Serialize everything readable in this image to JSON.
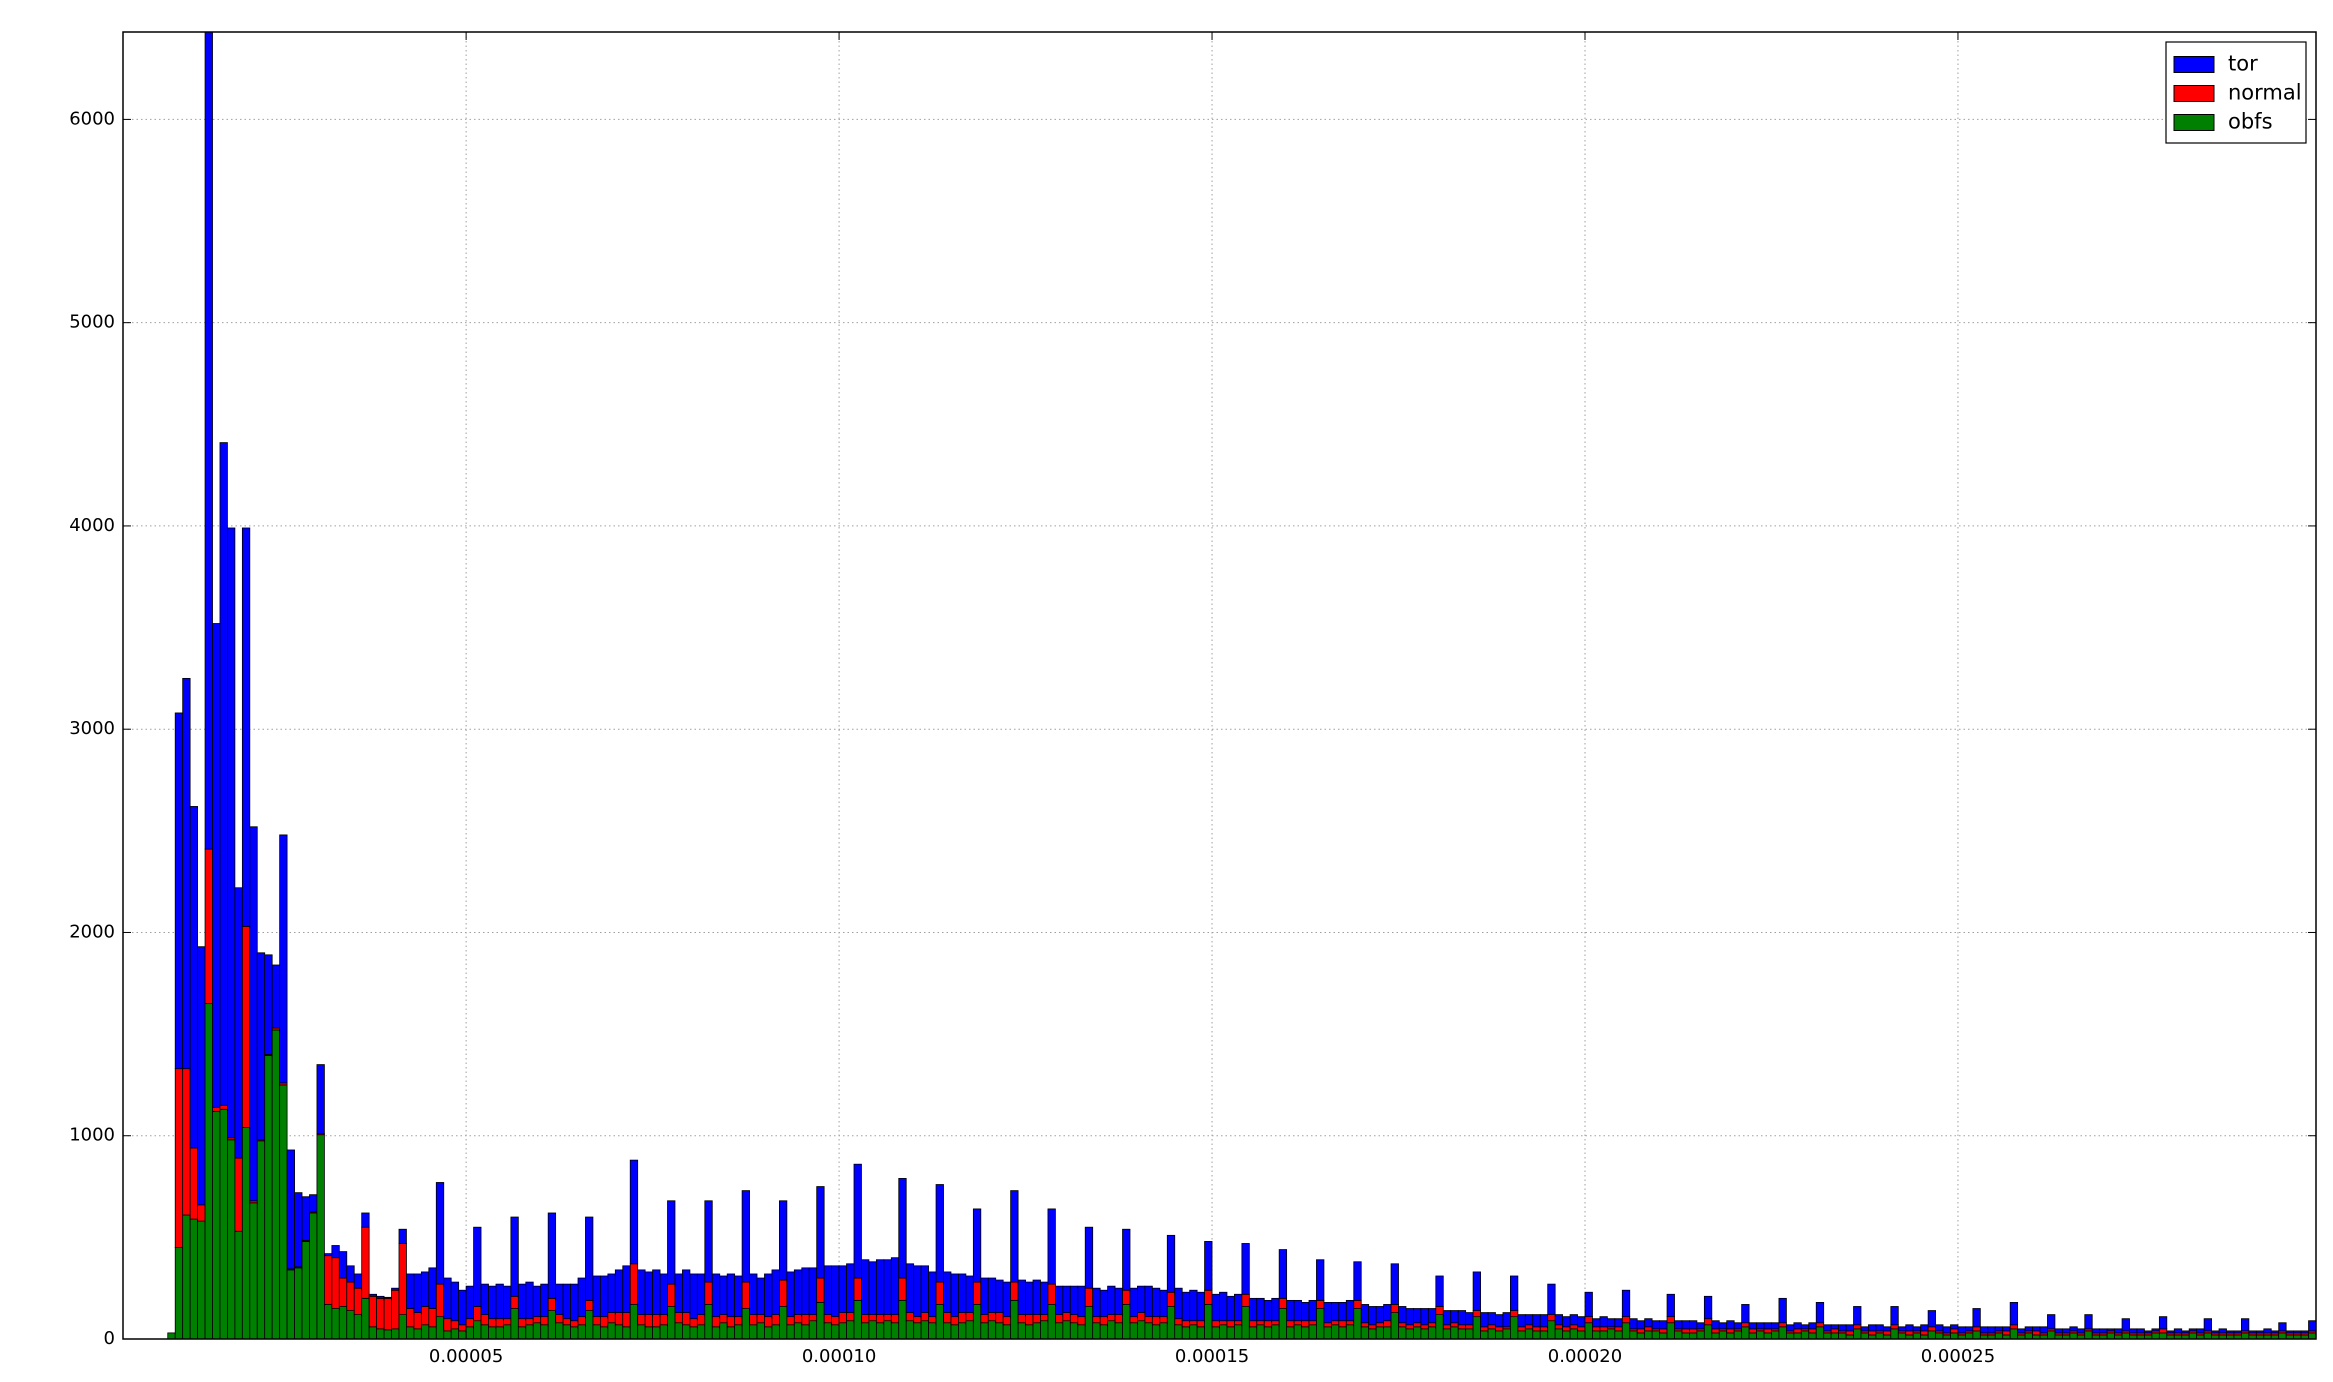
{
  "chart_data": {
    "type": "histogram",
    "stacked": true,
    "grid": true,
    "legend": "upper right",
    "xlim": [
      4e-06,
      0.000298
    ],
    "ylim": [
      0,
      6430
    ],
    "xticks": [
      {
        "value": 5e-05,
        "label": "0.00005"
      },
      {
        "value": 0.0001,
        "label": "0.00010"
      },
      {
        "value": 0.00015,
        "label": "0.00015"
      },
      {
        "value": 0.0002,
        "label": "0.00020"
      },
      {
        "value": 0.00025,
        "label": "0.00025"
      }
    ],
    "yticks": [
      0,
      1000,
      2000,
      3000,
      4000,
      5000,
      6000
    ],
    "bins": [
      4e-06,
      5e-06,
      6e-06,
      7e-06,
      8e-06,
      9e-06,
      1e-05,
      1.1e-05,
      1.2e-05,
      1.3e-05,
      1.4e-05,
      1.5e-05,
      1.6e-05,
      1.7e-05,
      1.8e-05,
      1.9e-05,
      2e-05,
      2.1e-05,
      2.2e-05,
      2.3e-05,
      2.4e-05,
      2.5e-05,
      2.6e-05,
      2.7e-05,
      2.8e-05,
      2.9e-05,
      3e-05,
      3.1e-05,
      3.2e-05,
      3.3e-05,
      3.4e-05,
      3.5e-05,
      3.6e-05,
      3.7e-05,
      3.8e-05,
      3.9e-05,
      4e-05,
      4.1e-05,
      4.2e-05,
      4.3e-05,
      4.4e-05,
      4.5e-05,
      4.6e-05,
      4.7e-05,
      4.8e-05,
      4.9e-05,
      5e-05,
      5.1e-05,
      5.2e-05,
      5.3e-05,
      5.4e-05,
      5.5e-05,
      5.6e-05,
      5.7e-05,
      5.8e-05,
      5.9e-05,
      6e-05,
      6.1e-05,
      6.2e-05,
      6.3e-05,
      6.4e-05,
      6.5e-05,
      6.6e-05,
      6.7e-05,
      6.8e-05,
      6.9e-05,
      7e-05,
      7.1e-05,
      7.2e-05,
      7.3e-05,
      7.4e-05,
      7.5e-05,
      7.6e-05,
      7.7e-05,
      7.8e-05,
      7.9e-05,
      8e-05,
      8.1e-05,
      8.2e-05,
      8.3e-05,
      8.4e-05,
      8.5e-05,
      8.6e-05,
      8.7e-05,
      8.8e-05,
      8.9e-05,
      9e-05,
      9.1e-05,
      9.2e-05,
      9.3e-05,
      9.4e-05,
      9.5e-05,
      9.6e-05,
      9.7e-05,
      9.8e-05,
      9.9e-05,
      0.0001,
      0.000101,
      0.000102,
      0.000103,
      0.000104,
      0.000105,
      0.000106,
      0.000107,
      0.000108,
      0.000109,
      0.00011,
      0.000111,
      0.000112,
      0.000113,
      0.000114,
      0.000115,
      0.000116,
      0.000117,
      0.000118,
      0.000119,
      0.00012,
      0.000121,
      0.000122,
      0.000123,
      0.000124,
      0.000125,
      0.000126,
      0.000127,
      0.000128,
      0.000129,
      0.00013,
      0.000131,
      0.000132,
      0.000133,
      0.000134,
      0.000135,
      0.000136,
      0.000137,
      0.000138,
      0.000139,
      0.00014,
      0.000141,
      0.000142,
      0.000143,
      0.000144,
      0.000145,
      0.000146,
      0.000147,
      0.000148,
      0.000149,
      0.00015,
      0.000151,
      0.000152,
      0.000153,
      0.000154,
      0.000155,
      0.000156,
      0.000157,
      0.000158,
      0.000159,
      0.00016,
      0.000161,
      0.000162,
      0.000163,
      0.000164,
      0.000165,
      0.000166,
      0.000167,
      0.000168,
      0.000169,
      0.00017,
      0.000171,
      0.000172,
      0.000173,
      0.000174,
      0.000175,
      0.000176,
      0.000177,
      0.000178,
      0.000179,
      0.00018,
      0.000181,
      0.000182,
      0.000183,
      0.000184,
      0.000185,
      0.000186,
      0.000187,
      0.000188,
      0.000189,
      0.00019,
      0.000191,
      0.000192,
      0.000193,
      0.000194,
      0.000195,
      0.000196,
      0.000197,
      0.000198,
      0.000199,
      0.0002,
      0.000201,
      0.000202,
      0.000203,
      0.000204,
      0.000205,
      0.000206,
      0.000207,
      0.000208,
      0.000209,
      0.00021,
      0.000211,
      0.000212,
      0.000213,
      0.000214,
      0.000215,
      0.000216,
      0.000217,
      0.000218,
      0.000219,
      0.00022,
      0.000221,
      0.000222,
      0.000223,
      0.000224,
      0.000225,
      0.000226,
      0.000227,
      0.000228,
      0.000229,
      0.00023,
      0.000231,
      0.000232,
      0.000233,
      0.000234,
      0.000235,
      0.000236,
      0.000237,
      0.000238,
      0.000239,
      0.00024,
      0.000241,
      0.000242,
      0.000243,
      0.000244,
      0.000245,
      0.000246,
      0.000247,
      0.000248,
      0.000249,
      0.00025,
      0.000251,
      0.000252,
      0.000253,
      0.000254,
      0.000255,
      0.000256,
      0.000257,
      0.000258,
      0.000259,
      0.00026,
      0.000261,
      0.000262,
      0.000263,
      0.000264,
      0.000265,
      0.000266,
      0.000267,
      0.000268,
      0.000269,
      0.00027,
      0.000271,
      0.000272,
      0.000273,
      0.000274,
      0.000275,
      0.000276,
      0.000277,
      0.000278,
      0.000279,
      0.00028,
      0.000281,
      0.000282,
      0.000283,
      0.000284,
      0.000285,
      0.000286,
      0.000287,
      0.000288,
      0.000289,
      0.00029,
      0.000291,
      0.000292,
      0.000293,
      0.000294,
      0.000295,
      0.000296,
      0.000297,
      0.000298
    ],
    "series": [
      {
        "name": "tor",
        "color": "#0000ff",
        "values": [
          0,
          0,
          0,
          0,
          0,
          0,
          0,
          1750,
          1920,
          1680,
          1270,
          4020,
          2380,
          3260,
          3000,
          1330,
          1960,
          1840,
          920,
          490,
          310,
          1220,
          585,
          365,
          215,
          85,
          340,
          10,
          60,
          130,
          80,
          70,
          70,
          10,
          10,
          5,
          10,
          70,
          170,
          190,
          170,
          200,
          500,
          200,
          190,
          170,
          160,
          390,
          150,
          160,
          170,
          160,
          390,
          170,
          180,
          150,
          160,
          420,
          150,
          170,
          180,
          190,
          410,
          200,
          200,
          190,
          210,
          230,
          510,
          220,
          210,
          220,
          200,
          410,
          190,
          210,
          220,
          200,
          400,
          210,
          190,
          210,
          200,
          450,
          200,
          180,
          210,
          220,
          390,
          220,
          220,
          230,
          230,
          450,
          240,
          250,
          230,
          240,
          560,
          270,
          260,
          270,
          270,
          280,
          490,
          240,
          250,
          230,
          220,
          480,
          200,
          210,
          190,
          180,
          360,
          180,
          170,
          160,
          170,
          450,
          170,
          160,
          170,
          160,
          370,
          140,
          130,
          140,
          150,
          300,
          140,
          130,
          140,
          130,
          300,
          140,
          130,
          150,
          140,
          130,
          280,
          150,
          140,
          150,
          140,
          240,
          130,
          140,
          120,
          130,
          250,
          110,
          110,
          100,
          110,
          240,
          100,
          100,
          90,
          100,
          200,
          100,
          90,
          90,
          100,
          190,
          90,
          90,
          80,
          80,
          200,
          80,
          80,
          70,
          80,
          70,
          150,
          70,
          60,
          70,
          60,
          190,
          70,
          60,
          60,
          70,
          170,
          60,
          50,
          60,
          60,
          150,
          50,
          50,
          50,
          50,
          120,
          40,
          50,
          40,
          40,
          130,
          50,
          40,
          40,
          40,
          40,
          110,
          40,
          40,
          40,
          30,
          110,
          40,
          30,
          40,
          30,
          90,
          30,
          30,
          30,
          30,
          120,
          30,
          30,
          20,
          30,
          100,
          30,
          20,
          30,
          30,
          90,
          20,
          30,
          30,
          20,
          90,
          20,
          30,
          20,
          30,
          80,
          30,
          30,
          20,
          30,
          20,
          90,
          30,
          30,
          20,
          20,
          110,
          20,
          20,
          20,
          30,
          70,
          20,
          20,
          20,
          20,
          70,
          20,
          20,
          10,
          20,
          60,
          20,
          20,
          10,
          10,
          60,
          10,
          20,
          10,
          10,
          20,
          60,
          10,
          20,
          10,
          10,
          60,
          10,
          10,
          20,
          10,
          40,
          10,
          10,
          10,
          50
        ]
      },
      {
        "name": "normal",
        "color": "#ff0000",
        "values": [
          0,
          0,
          0,
          0,
          0,
          0,
          0,
          880,
          720,
          350,
          80,
          760,
          20,
          20,
          10,
          360,
          990,
          10,
          5,
          5,
          10,
          10,
          5,
          5,
          5,
          5,
          5,
          240,
          250,
          140,
          140,
          130,
          350,
          150,
          150,
          155,
          190,
          350,
          90,
          80,
          90,
          90,
          160,
          60,
          40,
          30,
          40,
          70,
          50,
          40,
          40,
          30,
          60,
          40,
          30,
          30,
          40,
          60,
          40,
          30,
          30,
          40,
          50,
          40,
          50,
          50,
          60,
          70,
          200,
          50,
          60,
          60,
          50,
          110,
          50,
          60,
          40,
          50,
          110,
          50,
          40,
          50,
          40,
          130,
          50,
          40,
          50,
          50,
          130,
          40,
          40,
          50,
          30,
          120,
          40,
          40,
          50,
          40,
          110,
          40,
          30,
          40,
          30,
          40,
          110,
          40,
          30,
          40,
          30,
          110,
          50,
          40,
          50,
          40,
          110,
          40,
          40,
          50,
          40,
          90,
          40,
          50,
          40,
          30,
          100,
          40,
          40,
          40,
          40,
          90,
          30,
          40,
          30,
          40,
          70,
          30,
          40,
          30,
          40,
          30,
          70,
          30,
          30,
          20,
          30,
          70,
          30,
          20,
          30,
          20,
          60,
          30,
          20,
          30,
          20,
          50,
          30,
          20,
          30,
          20,
          40,
          20,
          20,
          30,
          20,
          40,
          20,
          20,
          20,
          30,
          40,
          20,
          20,
          20,
          20,
          20,
          40,
          20,
          20,
          20,
          20,
          30,
          20,
          20,
          20,
          10,
          30,
          20,
          20,
          20,
          20,
          30,
          20,
          20,
          20,
          20,
          30,
          20,
          20,
          10,
          20,
          30,
          10,
          20,
          20,
          10,
          20,
          30,
          10,
          20,
          20,
          10,
          30,
          20,
          10,
          20,
          10,
          20,
          20,
          10,
          20,
          10,
          20,
          10,
          20,
          10,
          20,
          20,
          10,
          20,
          10,
          20,
          20,
          10,
          20,
          10,
          20,
          20,
          10,
          20,
          10,
          20,
          20,
          10,
          10,
          20,
          10,
          10,
          20,
          10,
          10,
          10,
          20,
          20,
          10,
          10,
          20,
          10,
          10,
          10,
          10,
          10,
          10,
          10,
          10,
          10,
          10,
          10,
          10,
          10,
          10,
          10,
          10,
          20,
          10,
          10,
          10,
          10,
          10,
          10,
          10,
          10,
          10,
          10,
          10,
          10,
          10,
          10,
          10,
          10,
          10,
          10,
          10,
          10
        ]
      },
      {
        "name": "obfs",
        "color": "#008000",
        "values": [
          0,
          0,
          0,
          0,
          0,
          0,
          30,
          450,
          610,
          590,
          580,
          1650,
          1120,
          1130,
          980,
          530,
          1040,
          670,
          975,
          1395,
          1520,
          1250,
          340,
          350,
          480,
          620,
          1005,
          170,
          150,
          160,
          140,
          120,
          200,
          60,
          50,
          45,
          50,
          120,
          60,
          50,
          70,
          60,
          110,
          40,
          50,
          40,
          60,
          90,
          70,
          60,
          60,
          70,
          150,
          60,
          70,
          80,
          70,
          140,
          80,
          70,
          60,
          70,
          140,
          70,
          60,
          80,
          70,
          60,
          170,
          70,
          60,
          60,
          70,
          160,
          80,
          70,
          60,
          70,
          170,
          60,
          80,
          60,
          70,
          150,
          70,
          80,
          60,
          70,
          160,
          70,
          80,
          70,
          90,
          180,
          80,
          70,
          80,
          90,
          190,
          80,
          90,
          80,
          90,
          80,
          190,
          90,
          80,
          90,
          80,
          170,
          80,
          70,
          80,
          90,
          170,
          80,
          90,
          80,
          70,
          190,
          80,
          70,
          80,
          90,
          170,
          80,
          90,
          80,
          70,
          160,
          80,
          70,
          90,
          80,
          170,
          80,
          90,
          80,
          70,
          80,
          160,
          70,
          60,
          70,
          60,
          170,
          60,
          70,
          60,
          70,
          160,
          60,
          70,
          60,
          70,
          150,
          60,
          70,
          60,
          70,
          150,
          60,
          70,
          60,
          70,
          150,
          60,
          50,
          60,
          60,
          130,
          60,
          50,
          60,
          50,
          60,
          120,
          50,
          60,
          50,
          50,
          110,
          40,
          50,
          40,
          50,
          110,
          40,
          50,
          40,
          40,
          90,
          50,
          40,
          50,
          40,
          80,
          40,
          40,
          50,
          40,
          80,
          40,
          30,
          40,
          40,
          30,
          80,
          40,
          30,
          30,
          40,
          70,
          30,
          40,
          30,
          40,
          60,
          30,
          40,
          30,
          40,
          60,
          30,
          30,
          40,
          30,
          60,
          30,
          30,
          30,
          20,
          50,
          30,
          20,
          30,
          20,
          50,
          30,
          20,
          30,
          20,
          40,
          30,
          20,
          30,
          20,
          30,
          40,
          20,
          20,
          30,
          20,
          50,
          20,
          30,
          20,
          20,
          40,
          20,
          20,
          30,
          20,
          40,
          20,
          20,
          30,
          20,
          30,
          20,
          20,
          20,
          30,
          30,
          20,
          20,
          20,
          30,
          20,
          30,
          20,
          20,
          20,
          20,
          30,
          20,
          20,
          20,
          20,
          30,
          20,
          20,
          20,
          30
        ]
      }
    ]
  }
}
